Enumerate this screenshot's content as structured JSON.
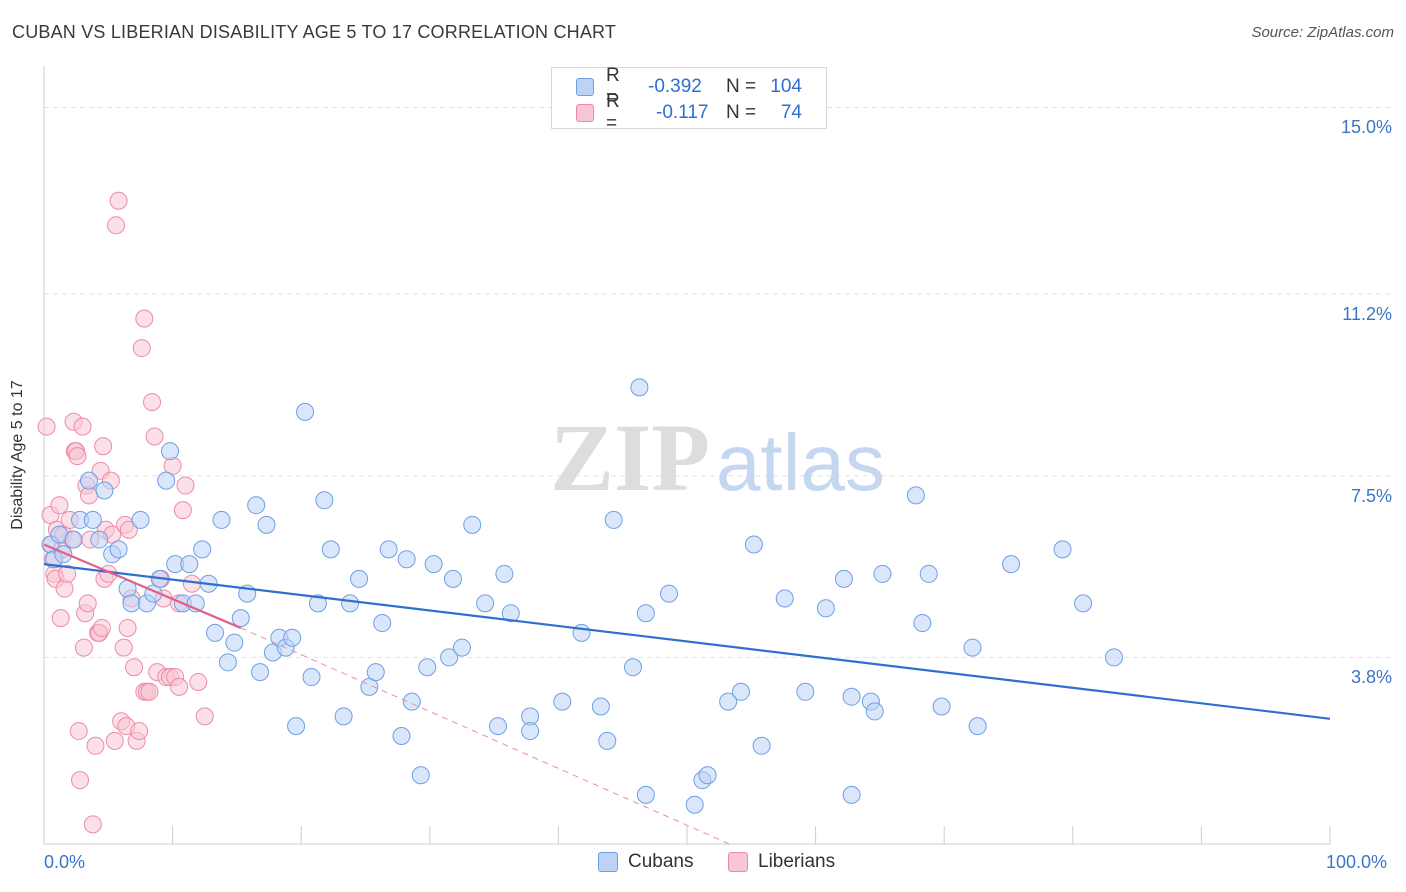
{
  "title": "CUBAN VS LIBERIAN DISABILITY AGE 5 TO 17 CORRELATION CHART",
  "source": "Source: ZipAtlas.com",
  "watermark": {
    "zip": "ZIP",
    "atlas": "atlas"
  },
  "legend": {
    "rows": [
      {
        "r_label": "R =",
        "r_value": "-0.392",
        "n_label": "N =",
        "n_value": "104",
        "color": "#6e9fe6",
        "fill": "#bcd3f5"
      },
      {
        "r_label": "R =",
        "r_value": "-0.117",
        "n_label": "N =",
        "n_value": "74",
        "color": "#ee8aa8",
        "fill": "#f8c6d4"
      }
    ]
  },
  "bottom_legend": {
    "cubans": "Cubans",
    "liberians": "Liberians"
  },
  "colors": {
    "cuban": "#6e9fe6",
    "cuban_line": "#2f6fd0",
    "liberian": "#ee8aa8",
    "liberian_line": "#e0608a",
    "grid": "#e2e2e2",
    "tick_label": "#3a75c9"
  },
  "chart_data": {
    "type": "scatter",
    "title": "CUBAN VS LIBERIAN DISABILITY AGE 5 TO 17 CORRELATION CHART",
    "xlabel": "",
    "ylabel": "Disability Age 5 to 17",
    "xlim": [
      0,
      100
    ],
    "ylim": [
      0,
      15.6
    ],
    "y_ticks": [
      3.8,
      7.5,
      11.2,
      15.0
    ],
    "y_tick_labels": [
      "3.8%",
      "7.5%",
      "11.2%",
      "15.0%"
    ],
    "x_tick_labels": [
      "0.0%",
      "100.0%"
    ],
    "grid": true,
    "legend_position": "top-center",
    "series": [
      {
        "name": "Cubans",
        "trend": {
          "x": [
            0,
            100
          ],
          "y": [
            5.7,
            2.55
          ]
        },
        "points": [
          [
            0.5,
            6.1
          ],
          [
            0.8,
            5.8
          ],
          [
            1.2,
            6.3
          ],
          [
            1.5,
            5.9
          ],
          [
            2.3,
            6.2
          ],
          [
            2.8,
            6.6
          ],
          [
            3.5,
            7.4
          ],
          [
            3.8,
            6.6
          ],
          [
            4.3,
            6.2
          ],
          [
            4.7,
            7.2
          ],
          [
            5.3,
            5.9
          ],
          [
            5.8,
            6.0
          ],
          [
            6.5,
            5.2
          ],
          [
            6.8,
            4.9
          ],
          [
            7.5,
            6.6
          ],
          [
            8.0,
            4.9
          ],
          [
            8.5,
            5.1
          ],
          [
            9.0,
            5.4
          ],
          [
            9.5,
            7.4
          ],
          [
            9.8,
            8.0
          ],
          [
            10.2,
            5.7
          ],
          [
            10.8,
            4.9
          ],
          [
            11.3,
            5.7
          ],
          [
            11.8,
            4.9
          ],
          [
            12.3,
            6.0
          ],
          [
            12.8,
            5.3
          ],
          [
            13.3,
            4.3
          ],
          [
            13.8,
            6.6
          ],
          [
            14.3,
            3.7
          ],
          [
            14.8,
            4.1
          ],
          [
            15.3,
            4.6
          ],
          [
            15.8,
            5.1
          ],
          [
            16.5,
            6.9
          ],
          [
            16.8,
            3.5
          ],
          [
            17.3,
            6.5
          ],
          [
            17.8,
            3.9
          ],
          [
            18.3,
            4.2
          ],
          [
            18.8,
            4.0
          ],
          [
            19.3,
            4.2
          ],
          [
            19.6,
            2.4
          ],
          [
            20.3,
            8.8
          ],
          [
            20.8,
            3.4
          ],
          [
            21.3,
            4.9
          ],
          [
            21.8,
            7.0
          ],
          [
            22.3,
            6.0
          ],
          [
            23.3,
            2.6
          ],
          [
            23.8,
            4.9
          ],
          [
            24.5,
            5.4
          ],
          [
            25.3,
            3.2
          ],
          [
            25.8,
            3.5
          ],
          [
            26.3,
            4.5
          ],
          [
            26.8,
            6.0
          ],
          [
            27.8,
            2.2
          ],
          [
            28.2,
            5.8
          ],
          [
            28.6,
            2.9
          ],
          [
            29.3,
            1.4
          ],
          [
            29.8,
            3.6
          ],
          [
            30.3,
            5.7
          ],
          [
            31.8,
            5.4
          ],
          [
            31.5,
            3.8
          ],
          [
            32.5,
            4.0
          ],
          [
            33.3,
            6.5
          ],
          [
            34.3,
            4.9
          ],
          [
            35.3,
            2.4
          ],
          [
            35.8,
            5.5
          ],
          [
            36.3,
            4.7
          ],
          [
            37.8,
            2.6
          ],
          [
            37.8,
            2.3
          ],
          [
            40.3,
            2.9
          ],
          [
            41.8,
            4.3
          ],
          [
            43.3,
            2.8
          ],
          [
            43.8,
            2.1
          ],
          [
            44.3,
            6.6
          ],
          [
            45.8,
            3.6
          ],
          [
            46.3,
            9.3
          ],
          [
            46.8,
            4.7
          ],
          [
            46.8,
            1.0
          ],
          [
            48.6,
            5.1
          ],
          [
            50.6,
            0.8
          ],
          [
            51.2,
            1.3
          ],
          [
            51.6,
            1.4
          ],
          [
            53.2,
            2.9
          ],
          [
            54.2,
            3.1
          ],
          [
            55.2,
            6.1
          ],
          [
            55.8,
            2.0
          ],
          [
            57.6,
            5.0
          ],
          [
            59.2,
            3.1
          ],
          [
            60.8,
            4.8
          ],
          [
            62.2,
            5.4
          ],
          [
            62.8,
            1.0
          ],
          [
            62.8,
            3.0
          ],
          [
            64.3,
            2.9
          ],
          [
            64.6,
            2.7
          ],
          [
            65.2,
            5.5
          ],
          [
            67.8,
            7.1
          ],
          [
            68.3,
            4.5
          ],
          [
            68.8,
            5.5
          ],
          [
            69.8,
            2.8
          ],
          [
            72.2,
            4.0
          ],
          [
            72.6,
            2.4
          ],
          [
            75.2,
            5.7
          ],
          [
            79.2,
            6.0
          ],
          [
            80.8,
            4.9
          ],
          [
            83.2,
            3.8
          ]
        ]
      },
      {
        "name": "Liberians",
        "trend": {
          "x": [
            0,
            15.3
          ],
          "y": [
            6.1,
            4.4
          ]
        },
        "trend_extended": {
          "x": [
            15.3,
            53.3
          ],
          "y": [
            4.4,
            0
          ]
        },
        "points": [
          [
            0.2,
            8.5
          ],
          [
            0.5,
            6.7
          ],
          [
            0.6,
            6.1
          ],
          [
            0.7,
            5.8
          ],
          [
            0.8,
            5.5
          ],
          [
            0.9,
            5.4
          ],
          [
            1.0,
            6.4
          ],
          [
            1.2,
            6.9
          ],
          [
            1.3,
            4.6
          ],
          [
            1.4,
            6.0
          ],
          [
            1.5,
            6.3
          ],
          [
            1.6,
            5.2
          ],
          [
            1.8,
            5.5
          ],
          [
            2.0,
            6.6
          ],
          [
            2.2,
            6.2
          ],
          [
            2.3,
            8.6
          ],
          [
            2.4,
            8.0
          ],
          [
            2.5,
            8.0
          ],
          [
            2.6,
            7.9
          ],
          [
            2.7,
            2.3
          ],
          [
            2.8,
            1.3
          ],
          [
            3.0,
            8.5
          ],
          [
            3.1,
            4.0
          ],
          [
            3.2,
            4.7
          ],
          [
            3.3,
            7.3
          ],
          [
            3.4,
            4.9
          ],
          [
            3.5,
            7.1
          ],
          [
            3.6,
            6.2
          ],
          [
            3.8,
            0.4
          ],
          [
            4.0,
            2.0
          ],
          [
            4.2,
            4.3
          ],
          [
            4.3,
            4.3
          ],
          [
            4.4,
            7.6
          ],
          [
            4.5,
            4.4
          ],
          [
            4.6,
            8.1
          ],
          [
            4.7,
            5.4
          ],
          [
            4.8,
            6.4
          ],
          [
            5.0,
            5.5
          ],
          [
            5.2,
            7.4
          ],
          [
            5.3,
            6.3
          ],
          [
            5.5,
            2.1
          ],
          [
            5.6,
            12.6
          ],
          [
            5.8,
            13.1
          ],
          [
            6.0,
            2.5
          ],
          [
            6.2,
            4.0
          ],
          [
            6.3,
            6.5
          ],
          [
            6.4,
            2.4
          ],
          [
            6.5,
            4.4
          ],
          [
            6.6,
            6.4
          ],
          [
            6.8,
            5.0
          ],
          [
            7.0,
            3.6
          ],
          [
            7.2,
            2.1
          ],
          [
            7.4,
            2.3
          ],
          [
            7.6,
            10.1
          ],
          [
            7.8,
            10.7
          ],
          [
            7.8,
            3.1
          ],
          [
            8.0,
            3.1
          ],
          [
            8.2,
            3.1
          ],
          [
            8.4,
            9.0
          ],
          [
            8.6,
            8.3
          ],
          [
            8.8,
            3.5
          ],
          [
            9.1,
            5.4
          ],
          [
            9.3,
            5.0
          ],
          [
            9.5,
            3.4
          ],
          [
            9.8,
            3.4
          ],
          [
            10.0,
            7.7
          ],
          [
            10.2,
            3.4
          ],
          [
            10.5,
            4.9
          ],
          [
            10.8,
            6.8
          ],
          [
            11.0,
            7.3
          ],
          [
            11.5,
            5.3
          ],
          [
            12.0,
            3.3
          ],
          [
            12.5,
            2.6
          ],
          [
            10.5,
            3.2
          ]
        ]
      }
    ]
  }
}
